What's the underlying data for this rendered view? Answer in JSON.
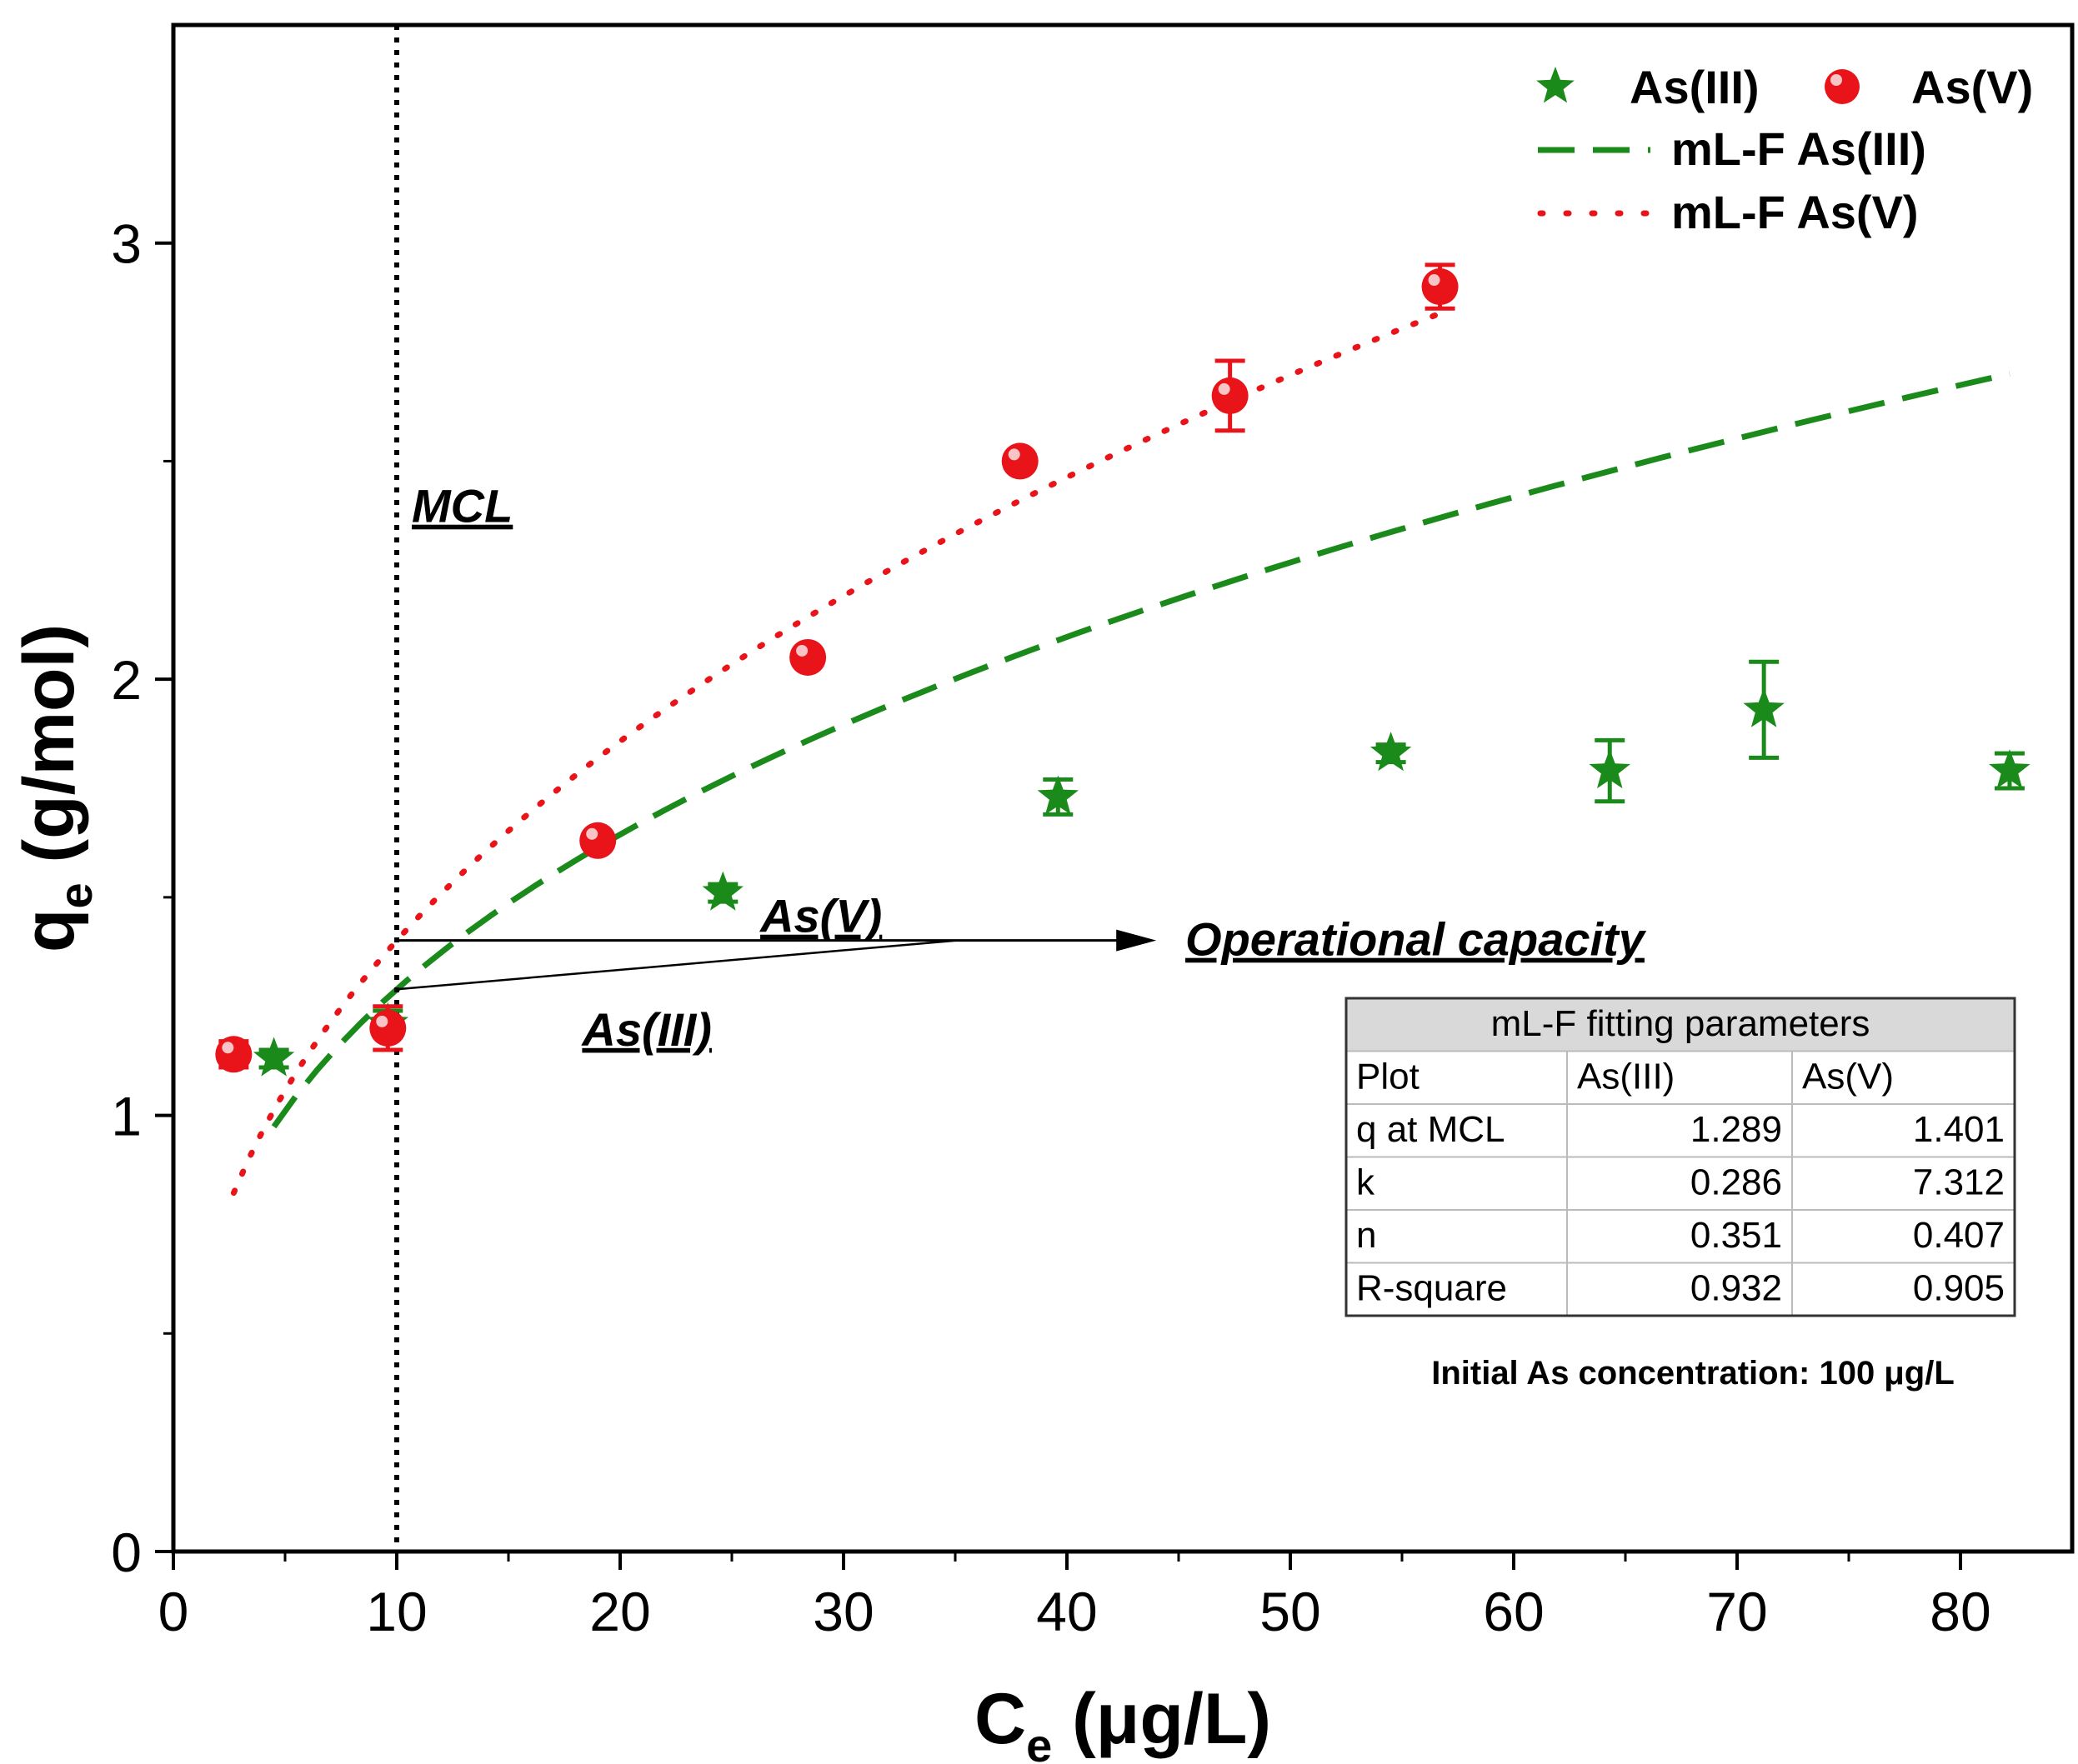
{
  "chart_data": {
    "type": "scatter",
    "xlabel": {
      "main": "C",
      "sub": "e",
      "unit": "(μg/L)"
    },
    "ylabel": {
      "main": "q",
      "sub": "e",
      "unit": "(g/mol)"
    },
    "xlim": [
      0,
      85
    ],
    "ylim": [
      0,
      3.5
    ],
    "x_ticks": [
      0,
      10,
      20,
      30,
      40,
      50,
      60,
      70,
      80
    ],
    "y_ticks": [
      0,
      1,
      2,
      3
    ],
    "x_tick_labels": [
      "0",
      "10",
      "20",
      "30",
      "40",
      "50",
      "60",
      "70",
      "80"
    ],
    "y_tick_labels": [
      "0",
      "1",
      "2",
      "3"
    ],
    "series": [
      {
        "name": "As(III)",
        "marker": "star",
        "color": "#1a8a1a",
        "points": [
          {
            "x": 4.5,
            "y": 1.13,
            "err": 0.02
          },
          {
            "x": 9.6,
            "y": 1.21,
            "err": 0.03
          },
          {
            "x": 24.6,
            "y": 1.51,
            "err": 0.02
          },
          {
            "x": 39.6,
            "y": 1.73,
            "err": 0.04
          },
          {
            "x": 54.5,
            "y": 1.83,
            "err": 0.02
          },
          {
            "x": 64.3,
            "y": 1.79,
            "err": 0.07
          },
          {
            "x": 71.2,
            "y": 1.93,
            "err": 0.11
          },
          {
            "x": 82.2,
            "y": 1.79,
            "err": 0.04
          }
        ]
      },
      {
        "name": "As(V)",
        "marker": "circle",
        "color": "#e8141a",
        "points": [
          {
            "x": 2.7,
            "y": 1.14,
            "err": 0.03
          },
          {
            "x": 9.6,
            "y": 1.2,
            "err": 0.05
          },
          {
            "x": 19.0,
            "y": 1.63,
            "err": 0.01
          },
          {
            "x": 28.4,
            "y": 2.05,
            "err": 0.01
          },
          {
            "x": 37.9,
            "y": 2.5,
            "err": 0.02
          },
          {
            "x": 47.3,
            "y": 2.65,
            "err": 0.08
          },
          {
            "x": 56.7,
            "y": 2.9,
            "err": 0.05
          }
        ]
      }
    ],
    "fits": [
      {
        "name": "mL-F As(III)",
        "style": "dashed",
        "color": "#1a8a1a",
        "k": 0.286,
        "n": 0.351,
        "x_range": [
          4.5,
          82.2
        ]
      },
      {
        "name": "mL-F As(V)",
        "style": "dotted",
        "color": "#e8141a",
        "k": 7.312,
        "n": 0.407,
        "x_range": [
          2.7,
          56.7
        ]
      }
    ],
    "mcl_line": {
      "x": 10,
      "label": "MCL"
    },
    "annotations": {
      "as_v": "As(V)",
      "as_iii": "As(III)",
      "operational": "Operational capacity",
      "q_mcl_as_iii": 1.289,
      "q_mcl_as_v": 1.401,
      "arrow_end_x": 44
    },
    "legend": {
      "placement": "top-right",
      "entries": [
        {
          "label": "As(III)",
          "kind": "star",
          "color": "#1a8a1a"
        },
        {
          "label": "As(V)",
          "kind": "circle",
          "color": "#e8141a"
        },
        {
          "label": "mL-F As(III)",
          "kind": "dashed",
          "color": "#1a8a1a"
        },
        {
          "label": "mL-F As(V)",
          "kind": "dotted",
          "color": "#e8141a"
        }
      ]
    },
    "table": {
      "title": "mL-F fitting parameters",
      "header": [
        "Plot",
        "As(III)",
        "As(V)"
      ],
      "rows": [
        [
          "q at MCL",
          "1.289",
          "1.401"
        ],
        [
          "k",
          "0.286",
          "7.312"
        ],
        [
          "n",
          "0.351",
          "0.407"
        ],
        [
          "R-square",
          "0.932",
          "0.905"
        ]
      ]
    },
    "footnote": "Initial As concentration: 100 μg/L"
  }
}
